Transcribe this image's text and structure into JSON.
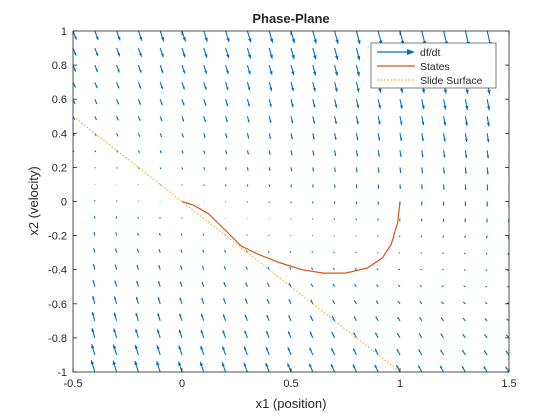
{
  "chart_data": {
    "type": "line",
    "title": "Phase-Plane",
    "xlabel": "x1 (position)",
    "ylabel": "x2 (velocity)",
    "xlim": [
      -0.5,
      1.5
    ],
    "ylim": [
      -1,
      1
    ],
    "xticks": [
      -0.5,
      0,
      0.5,
      1,
      1.5
    ],
    "yticks": [
      -1,
      -0.8,
      -0.6,
      -0.4,
      -0.2,
      0,
      0.2,
      0.4,
      0.6,
      0.8,
      1
    ],
    "xtick_labels": [
      "-0.5",
      "0",
      "0.5",
      "1",
      "1.5"
    ],
    "ytick_labels": [
      "-1",
      "-0.8",
      "-0.6",
      "-0.4",
      "-0.2",
      "0",
      "0.2",
      "0.4",
      "0.6",
      "0.8",
      "1"
    ],
    "grid": false,
    "legend_position": "top-right",
    "legend": [
      "df/dt",
      "States",
      "Slide Surface"
    ],
    "colors": {
      "quiver": "#0072BD",
      "states": "#D95319",
      "slide": "#EDB120"
    },
    "series": [
      {
        "name": "df/dt",
        "type": "quiver",
        "grid_x": {
          "start": -0.5,
          "step": 0.1,
          "count": 21
        },
        "grid_y": {
          "start": -1,
          "step": 0.1,
          "count": 21
        },
        "field": "dx1 = x2, dx2 = -x1 - 3*x2"
      },
      {
        "name": "States",
        "type": "line",
        "x": [
          1.0,
          0.99,
          0.96,
          0.92,
          0.85,
          0.75,
          0.65,
          0.55,
          0.45,
          0.35,
          0.27,
          0.2,
          0.12,
          0.05,
          0.0
        ],
        "y": [
          0.0,
          -0.12,
          -0.25,
          -0.33,
          -0.39,
          -0.42,
          -0.42,
          -0.4,
          -0.36,
          -0.31,
          -0.26,
          -0.17,
          -0.07,
          -0.02,
          0.0
        ]
      },
      {
        "name": "Slide Surface",
        "type": "line",
        "x": [
          -0.5,
          1.0
        ],
        "y": [
          0.5,
          -1.0
        ]
      }
    ]
  }
}
